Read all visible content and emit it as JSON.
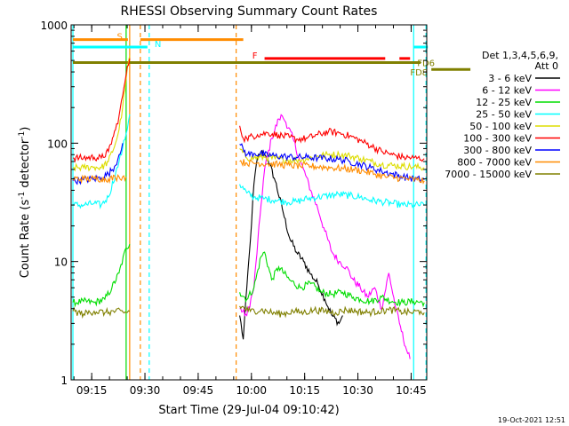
{
  "chart_data": {
    "type": "line",
    "title": "RHESSI Observing Summary Count Rates",
    "xlabel": "Start Time (29-Jul-04 09:10:42)",
    "ylabel_parts": [
      "Count Rate (s",
      "-1",
      " detector",
      "-1",
      ")"
    ],
    "y_scale": "log",
    "ylim": [
      1,
      1000
    ],
    "xlim_minutes": [
      -1,
      49
    ],
    "y_ticks": [
      {
        "v": 1,
        "label": "1"
      },
      {
        "v": 10,
        "label": "10"
      },
      {
        "v": 100,
        "label": "100"
      },
      {
        "v": 1000,
        "label": "1000"
      }
    ],
    "x_ticks": [
      {
        "t": 4.3,
        "label": "09:15"
      },
      {
        "t": 19.3,
        "label": "09:30"
      },
      {
        "t": 34.3,
        "label": "09:45"
      },
      {
        "t": 49.3,
        "label": "10:00"
      },
      {
        "t": 64.3,
        "label": "10:15"
      },
      {
        "t": 79.3,
        "label": "10:30"
      },
      {
        "t": 94.3,
        "label": "10:45"
      }
    ],
    "x_axis_span_minutes": [
      -1.5,
      98.7
    ],
    "legend_header": [
      "Det 1,3,4,5,6,9,",
      "Att 0"
    ],
    "timestamp": "19-Oct-2021 12:51",
    "series": [
      {
        "name": "3 - 6 keV",
        "color": "#000000",
        "points": [
          [
            46,
            3.5
          ],
          [
            47,
            2.2
          ],
          [
            48,
            6
          ],
          [
            49,
            15
          ],
          [
            50,
            45
          ],
          [
            51,
            75
          ],
          [
            52,
            85
          ],
          [
            53,
            80
          ],
          [
            54,
            72
          ],
          [
            56,
            48
          ],
          [
            58,
            28
          ],
          [
            60,
            16
          ],
          [
            62,
            12
          ],
          [
            64,
            10
          ],
          [
            66,
            7.8
          ],
          [
            68,
            6.5
          ],
          [
            70,
            4.8
          ],
          [
            72,
            3.5
          ],
          [
            74,
            3
          ],
          [
            75,
            3.5
          ]
        ]
      },
      {
        "name": "6 - 12 keV",
        "color": "#ff00ff",
        "points": [
          [
            46,
            4
          ],
          [
            48,
            3.5
          ],
          [
            50,
            6
          ],
          [
            52,
            30
          ],
          [
            53,
            60
          ],
          [
            55,
            110
          ],
          [
            57,
            160
          ],
          [
            58,
            170
          ],
          [
            59,
            150
          ],
          [
            61,
            110
          ],
          [
            63,
            70
          ],
          [
            64,
            60
          ],
          [
            66,
            40
          ],
          [
            68,
            28
          ],
          [
            70,
            18
          ],
          [
            72,
            12
          ],
          [
            74,
            10
          ],
          [
            76,
            9
          ],
          [
            78,
            7
          ],
          [
            80,
            6
          ],
          [
            82,
            5
          ],
          [
            84,
            6
          ],
          [
            86,
            4
          ],
          [
            88,
            8
          ],
          [
            90,
            4
          ],
          [
            91,
            3
          ],
          [
            93,
            1.8
          ],
          [
            94,
            1.5
          ]
        ]
      },
      {
        "name": "12 - 25 keV",
        "color": "#00dd00",
        "points": [
          [
            -1,
            4.5
          ],
          [
            2,
            4.6
          ],
          [
            5,
            4.5
          ],
          [
            8,
            4.8
          ],
          [
            10,
            6
          ],
          [
            12,
            8
          ],
          [
            14,
            13
          ],
          [
            15,
            14
          ],
          [
            46,
            5.5
          ],
          [
            48,
            4.8
          ],
          [
            50,
            6
          ],
          [
            52,
            11
          ],
          [
            53,
            12
          ],
          [
            55,
            7
          ],
          [
            57,
            9
          ],
          [
            60,
            7
          ],
          [
            63,
            6
          ],
          [
            66,
            6.5
          ],
          [
            69,
            5.5
          ],
          [
            72,
            5.3
          ],
          [
            75,
            5.5
          ],
          [
            78,
            5
          ],
          [
            80,
            4.8
          ],
          [
            83,
            4.6
          ],
          [
            86,
            5
          ],
          [
            89,
            4.6
          ],
          [
            92,
            4.5
          ],
          [
            95,
            4.6
          ],
          [
            98,
            4.5
          ]
        ]
      },
      {
        "name": "25 - 50 keV",
        "color": "#00ffff",
        "points": [
          [
            -1,
            30
          ],
          [
            2,
            30
          ],
          [
            5,
            31
          ],
          [
            7,
            30
          ],
          [
            9,
            35
          ],
          [
            11,
            55
          ],
          [
            12,
            70
          ],
          [
            13,
            90
          ],
          [
            14,
            120
          ],
          [
            15,
            175
          ],
          [
            46,
            45
          ],
          [
            48,
            38
          ],
          [
            50,
            35
          ],
          [
            53,
            34
          ],
          [
            56,
            33
          ],
          [
            59,
            32
          ],
          [
            62,
            32
          ],
          [
            65,
            34
          ],
          [
            68,
            35
          ],
          [
            71,
            36
          ],
          [
            74,
            37
          ],
          [
            77,
            36
          ],
          [
            80,
            35
          ],
          [
            83,
            33
          ],
          [
            86,
            32
          ],
          [
            89,
            31
          ],
          [
            92,
            30
          ],
          [
            95,
            30
          ],
          [
            98,
            30
          ]
        ]
      },
      {
        "name": "50 - 100 keV",
        "color": "#dddd00",
        "points": [
          [
            -1,
            62
          ],
          [
            2,
            62
          ],
          [
            5,
            63
          ],
          [
            7,
            62
          ],
          [
            9,
            70
          ],
          [
            11,
            100
          ],
          [
            12,
            130
          ],
          [
            13,
            200
          ],
          [
            14,
            350
          ],
          [
            15,
            550
          ],
          [
            46,
            90
          ],
          [
            48,
            75
          ],
          [
            50,
            75
          ],
          [
            53,
            76
          ],
          [
            56,
            74
          ],
          [
            59,
            72
          ],
          [
            62,
            72
          ],
          [
            65,
            74
          ],
          [
            68,
            78
          ],
          [
            71,
            80
          ],
          [
            74,
            80
          ],
          [
            77,
            78
          ],
          [
            80,
            74
          ],
          [
            83,
            70
          ],
          [
            86,
            66
          ],
          [
            89,
            65
          ],
          [
            92,
            64
          ],
          [
            95,
            63
          ],
          [
            98,
            62
          ]
        ]
      },
      {
        "name": "100 - 300 keV",
        "color": "#ff0000",
        "points": [
          [
            -1,
            75
          ],
          [
            2,
            75
          ],
          [
            5,
            76
          ],
          [
            7,
            75
          ],
          [
            9,
            85
          ],
          [
            11,
            130
          ],
          [
            12,
            170
          ],
          [
            13,
            250
          ],
          [
            14,
            380
          ],
          [
            15,
            520
          ],
          [
            46,
            140
          ],
          [
            47,
            110
          ],
          [
            48,
            110
          ],
          [
            51,
            118
          ],
          [
            54,
            122
          ],
          [
            57,
            117
          ],
          [
            60,
            112
          ],
          [
            62,
            108
          ],
          [
            65,
            110
          ],
          [
            68,
            118
          ],
          [
            71,
            125
          ],
          [
            74,
            122
          ],
          [
            77,
            115
          ],
          [
            80,
            105
          ],
          [
            83,
            95
          ],
          [
            86,
            85
          ],
          [
            89,
            80
          ],
          [
            92,
            76
          ],
          [
            95,
            75
          ],
          [
            98,
            74
          ]
        ]
      },
      {
        "name": "300 - 800 keV",
        "color": "#0000ff",
        "points": [
          [
            -1,
            48
          ],
          [
            2,
            49
          ],
          [
            5,
            50
          ],
          [
            7,
            51
          ],
          [
            9,
            55
          ],
          [
            11,
            65
          ],
          [
            12,
            80
          ],
          [
            13,
            100
          ],
          [
            46,
            98
          ],
          [
            48,
            80
          ],
          [
            50,
            82
          ],
          [
            53,
            80
          ],
          [
            56,
            78
          ],
          [
            59,
            77
          ],
          [
            62,
            76
          ],
          [
            65,
            76
          ],
          [
            68,
            75
          ],
          [
            71,
            74
          ],
          [
            74,
            73
          ],
          [
            77,
            70
          ],
          [
            80,
            66
          ],
          [
            83,
            62
          ],
          [
            86,
            58
          ],
          [
            89,
            55
          ],
          [
            92,
            52
          ],
          [
            95,
            50
          ],
          [
            98,
            49
          ]
        ]
      },
      {
        "name": "800 - 7000 keV",
        "color": "#ff8c00",
        "points": [
          [
            -1,
            50
          ],
          [
            2,
            50
          ],
          [
            5,
            50
          ],
          [
            7,
            50
          ],
          [
            9,
            50
          ],
          [
            11,
            51
          ],
          [
            12,
            52
          ],
          [
            13,
            52
          ],
          [
            14,
            52
          ],
          [
            46,
            70
          ],
          [
            48,
            68
          ],
          [
            51,
            68
          ],
          [
            54,
            67
          ],
          [
            57,
            66
          ],
          [
            60,
            65
          ],
          [
            63,
            64
          ],
          [
            66,
            64
          ],
          [
            69,
            63
          ],
          [
            72,
            62
          ],
          [
            75,
            61
          ],
          [
            78,
            60
          ],
          [
            81,
            58
          ],
          [
            84,
            55
          ],
          [
            87,
            52
          ],
          [
            90,
            51
          ],
          [
            93,
            50
          ],
          [
            96,
            49
          ],
          [
            98,
            48
          ]
        ]
      },
      {
        "name": "7000 - 15000 keV",
        "color": "#808000",
        "points": [
          [
            -1,
            3.8
          ],
          [
            2,
            3.6
          ],
          [
            5,
            3.8
          ],
          [
            8,
            3.7
          ],
          [
            11,
            3.8
          ],
          [
            14,
            3.7
          ],
          [
            15,
            3.8
          ],
          [
            46,
            4.2
          ],
          [
            49,
            3.8
          ],
          [
            52,
            3.9
          ],
          [
            55,
            3.7
          ],
          [
            58,
            3.6
          ],
          [
            61,
            3.8
          ],
          [
            64,
            3.7
          ],
          [
            67,
            3.9
          ],
          [
            70,
            3.8
          ],
          [
            73,
            3.7
          ],
          [
            76,
            3.9
          ],
          [
            79,
            3.8
          ],
          [
            82,
            3.7
          ],
          [
            85,
            3.8
          ],
          [
            88,
            3.9
          ],
          [
            91,
            3.8
          ],
          [
            94,
            3.7
          ],
          [
            97,
            3.8
          ],
          [
            98,
            3.7
          ]
        ]
      }
    ],
    "state_bars": [
      {
        "label": "S",
        "color": "#ff8c00",
        "y": 750,
        "segments": [
          [
            -1,
            14.5
          ],
          [
            18,
            47
          ]
        ],
        "label_at": 14,
        "label_side": "left"
      },
      {
        "label": "N",
        "color": "#00ffff",
        "y": 650,
        "segments": [
          [
            -1,
            20
          ]
        ],
        "label_at": 21,
        "label_side": "right"
      },
      {
        "label": "F",
        "color": "#ff0000",
        "y": 520,
        "segments": [
          [
            53,
            87
          ],
          [
            91,
            94
          ]
        ],
        "label_at": 52,
        "label_side": "left"
      },
      {
        "label": "",
        "color": "#00ffff",
        "y": 650,
        "segments": [
          [
            95,
            99
          ]
        ],
        "label_at": 0,
        "label_side": "none"
      },
      {
        "label": "FD6",
        "color": "#808000",
        "y": 480,
        "segments": [
          [
            -1,
            97
          ]
        ],
        "label_at": 95,
        "label_side": "right"
      },
      {
        "label": "FD8",
        "color": "#808000",
        "y": 420,
        "segments": [
          [
            100,
            111
          ]
        ],
        "label_at": 100,
        "label_side": "left"
      }
    ],
    "vertical_markers": [
      {
        "t": -1,
        "color": "#00ffff",
        "style": "solid"
      },
      {
        "t": 15,
        "color": "#ff8c00",
        "style": "solid"
      },
      {
        "t": 14,
        "color": "#00dd00",
        "style": "solid"
      },
      {
        "t": 18,
        "color": "#ff8c00",
        "style": "dashed"
      },
      {
        "t": 20.5,
        "color": "#00ffff",
        "style": "dashed"
      },
      {
        "t": 45,
        "color": "#ff8c00",
        "style": "dashed"
      },
      {
        "t": 95,
        "color": "#00ffff",
        "style": "solid"
      },
      {
        "t": 98.5,
        "color": "#00ffff",
        "style": "dashed"
      }
    ]
  }
}
